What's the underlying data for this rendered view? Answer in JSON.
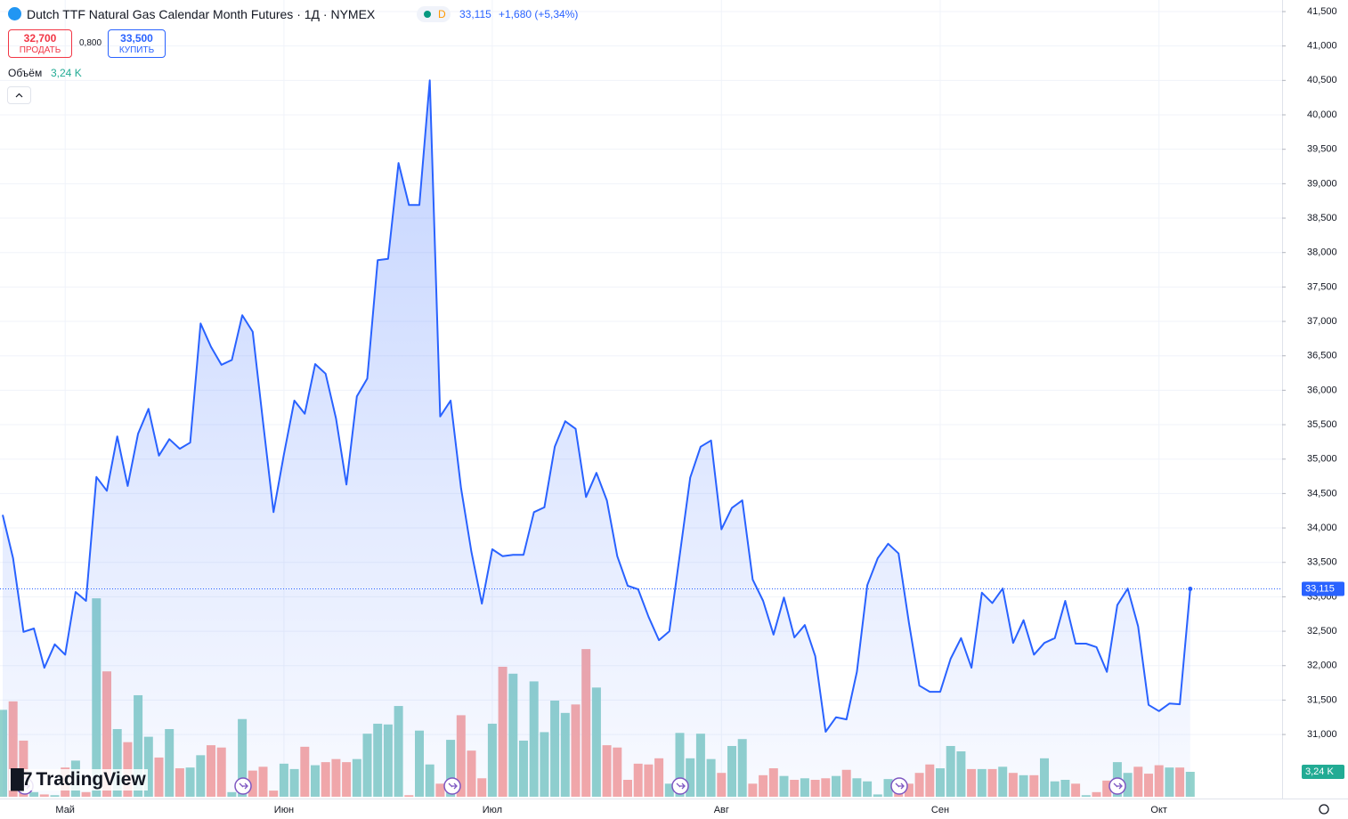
{
  "header": {
    "status": "D",
    "last": "33,115",
    "change": "+1,680 (+5,34%)",
    "sell_price": "32,700",
    "sell_label": "ПРОДАТЬ",
    "spread": "0,800",
    "buy_price": "33,500",
    "buy_label": "КУПИТЬ",
    "brand": "TradingView"
  },
  "chart_data": {
    "type": "area",
    "title": "Dutch TTF Natural Gas Calendar Month Futures · 1Д · NYMEX",
    "categories": [
      null,
      null,
      null,
      null,
      null,
      null,
      "Май",
      null,
      null,
      null,
      null,
      null,
      null,
      null,
      null,
      null,
      null,
      null,
      null,
      null,
      null,
      null,
      null,
      null,
      null,
      null,
      null,
      "Июн",
      null,
      null,
      null,
      null,
      null,
      null,
      null,
      null,
      null,
      null,
      null,
      null,
      null,
      null,
      null,
      null,
      null,
      null,
      null,
      "Июл",
      null,
      null,
      null,
      null,
      null,
      null,
      null,
      null,
      null,
      null,
      null,
      null,
      null,
      null,
      null,
      null,
      null,
      null,
      null,
      null,
      null,
      "Авг",
      null,
      null,
      null,
      null,
      null,
      null,
      null,
      null,
      null,
      null,
      null,
      null,
      null,
      null,
      null,
      null,
      null,
      null,
      null,
      null,
      "Сен",
      null,
      null,
      null,
      null,
      null,
      null,
      null,
      null,
      null,
      null,
      null,
      null,
      null,
      null,
      null,
      null,
      null,
      null,
      null,
      null,
      "Окт",
      null,
      null,
      null
    ],
    "series": [
      {
        "color": "#2962ff",
        "values": [
          34190,
          33560,
          32490,
          32540,
          31970,
          32310,
          32160,
          33070,
          32940,
          34740,
          34540,
          35330,
          34610,
          35370,
          35730,
          35050,
          35290,
          35150,
          35240,
          36970,
          36630,
          36370,
          36440,
          37090,
          36850,
          35530,
          34230,
          35070,
          35850,
          35660,
          36380,
          36240,
          35590,
          34630,
          35910,
          36170,
          37890,
          37910,
          39300,
          38690,
          38690,
          40500,
          35620,
          35850,
          34580,
          33650,
          32900,
          33690,
          33590,
          33610,
          33610,
          34230,
          34300,
          35180,
          35550,
          35440,
          34450,
          34800,
          34400,
          33590,
          33160,
          33110,
          32710,
          32370,
          32500,
          33610,
          34730,
          35180,
          35270,
          33980,
          34290,
          34400,
          33250,
          32940,
          32450,
          32990,
          32410,
          32590,
          32140,
          31040,
          31250,
          31220,
          31910,
          33170,
          33560,
          33770,
          33630,
          32620,
          31710,
          31620,
          31620,
          32100,
          32400,
          31970,
          33060,
          32910,
          33120,
          32330,
          32660,
          32160,
          32330,
          32400,
          32940,
          32320,
          32320,
          32270,
          31910,
          32880,
          33120,
          32570,
          31430,
          31340,
          31450,
          31440,
          33115
        ],
        "last_label": "33,115"
      },
      {
        "name": "Объём",
        "axis": "y2",
        "up_color": "#92d2cc",
        "down_color": "#f7a9a7",
        "values": [
          11.3,
          12.4,
          7.3,
          0.6,
          0.3,
          0.2,
          3.8,
          4.7,
          0.6,
          25.8,
          16.3,
          8.8,
          7.1,
          13.2,
          7.8,
          5.1,
          8.8,
          3.7,
          3.8,
          5.4,
          6.7,
          6.4,
          0.6,
          10.1,
          3.4,
          3.9,
          0.8,
          4.3,
          3.6,
          6.5,
          4.1,
          4.5,
          4.9,
          4.5,
          4.9,
          8.2,
          9.5,
          9.4,
          11.8,
          0.2,
          8.6,
          4.2,
          1.7,
          7.4,
          10.6,
          6.0,
          2.4,
          9.5,
          16.9,
          16.0,
          7.3,
          15.0,
          8.4,
          12.5,
          10.9,
          12.0,
          19.2,
          14.2,
          6.7,
          6.4,
          2.2,
          4.3,
          4.2,
          5.0,
          1.7,
          8.3,
          5.0,
          8.2,
          4.9,
          3.1,
          6.6,
          7.5,
          1.7,
          2.8,
          3.7,
          2.7,
          2.2,
          2.4,
          2.2,
          2.4,
          2.7,
          3.5,
          2.4,
          2.0,
          0.3,
          2.3,
          2.1,
          1.7,
          3.1,
          4.2,
          3.7,
          6.6,
          5.9,
          3.6,
          3.6,
          3.6,
          3.9,
          3.1,
          2.8,
          2.8,
          5.0,
          2.0,
          2.2,
          1.7,
          0.2,
          0.6,
          2.1,
          4.5,
          3.1,
          3.9,
          3.0,
          4.1,
          3.8,
          3.8,
          3.24
        ]
      }
    ],
    "volume_label": "3,24 K",
    "ylim": [
      30096,
      41668
    ],
    "yticks": [
      {
        "value": 31000,
        "label": "31,000"
      },
      {
        "value": 31500,
        "label": "31,500"
      },
      {
        "value": 32000,
        "label": "32,000"
      },
      {
        "value": 32500,
        "label": "32,500"
      },
      {
        "value": 33000,
        "label": "33,000"
      },
      {
        "value": 33500,
        "label": "33,500"
      },
      {
        "value": 34000,
        "label": "34,000"
      },
      {
        "value": 34500,
        "label": "34,500"
      },
      {
        "value": 35000,
        "label": "35,000"
      },
      {
        "value": 35500,
        "label": "35,500"
      },
      {
        "value": 36000,
        "label": "36,000"
      },
      {
        "value": 36500,
        "label": "36,500"
      },
      {
        "value": 37000,
        "label": "37,000"
      },
      {
        "value": 37500,
        "label": "37,500"
      },
      {
        "value": 38000,
        "label": "38,000"
      },
      {
        "value": 38500,
        "label": "38,500"
      },
      {
        "value": 39000,
        "label": "39,000"
      },
      {
        "value": 39500,
        "label": "39,500"
      },
      {
        "value": 40000,
        "label": "40,000"
      },
      {
        "value": 40500,
        "label": "40,500"
      },
      {
        "value": 41000,
        "label": "41,000"
      },
      {
        "value": 41500,
        "label": "41,500"
      }
    ],
    "y2lim": [
      0,
      103.6
    ],
    "grid": true
  }
}
